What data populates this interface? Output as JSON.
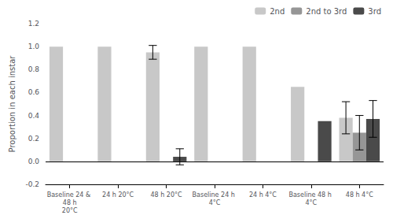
{
  "chart_data": {
    "type": "bar",
    "categories": [
      "Baseline 24 & 48 h\n20°C",
      "24 h 20°C",
      "48 h 20°C",
      "Baseline 24 h 4°C",
      "24 h 4°C",
      "Baseline 48 h 4°C",
      "48 h 4°C"
    ],
    "series": [
      {
        "name": "2nd",
        "color": "#c8c8c8",
        "values": [
          1.0,
          1.0,
          0.95,
          1.0,
          1.0,
          0.65,
          0.38
        ],
        "errors": [
          0.0,
          0.0,
          0.06,
          0.0,
          0.0,
          0.0,
          0.14
        ]
      },
      {
        "name": "2nd to 3rd",
        "color": "#969696",
        "values": [
          0.0,
          0.0,
          0.0,
          0.0,
          0.0,
          0.0,
          0.25
        ],
        "errors": [
          0.0,
          0.0,
          0.0,
          0.0,
          0.0,
          0.0,
          0.15
        ]
      },
      {
        "name": "3rd",
        "color": "#4a4a4a",
        "values": [
          0.0,
          0.0,
          0.04,
          0.0,
          0.0,
          0.35,
          0.37
        ],
        "errors": [
          0.0,
          0.0,
          0.07,
          0.0,
          0.0,
          0.0,
          0.16
        ]
      }
    ],
    "ylabel": "Proportion in each instar",
    "ylim": [
      -0.2,
      1.2
    ],
    "yticks": [
      -0.2,
      {
        "value": 0,
        "label": "0.0"
      },
      0.2,
      0.4,
      0.6,
      0.8,
      {
        "value": 1,
        "label": "1.0"
      },
      1.2
    ],
    "legend": "upper right",
    "grid": false
  }
}
